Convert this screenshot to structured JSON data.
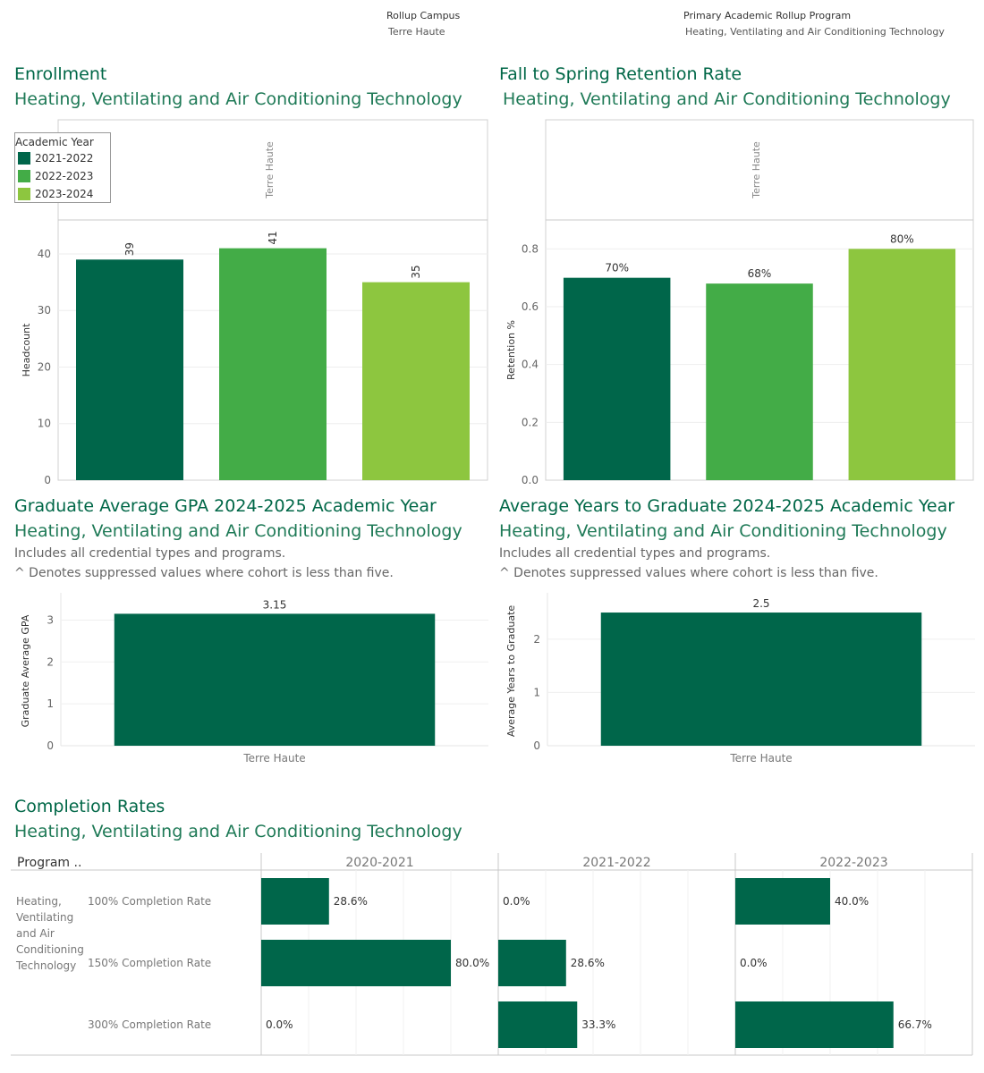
{
  "filters": {
    "campus_label": "Rollup Campus",
    "campus_value": "Terre Haute",
    "program_label": "Primary Academic Rollup Program",
    "program_value": "Heating, Ventilating and Air Conditioning Technology"
  },
  "colors": {
    "dark": "#00664a",
    "mid": "#43ac47",
    "light": "#8dc63f"
  },
  "enrollment": {
    "title": "Enrollment",
    "subtitle": "Heating, Ventilating and Air Conditioning Technology",
    "column_header": "Terre Haute",
    "legend_title": "Academic Year",
    "legend_items": [
      "2021-2022",
      "2022-2023",
      "2023-2024"
    ]
  },
  "retention": {
    "title": "Fall to Spring Retention Rate",
    "subtitle": "Heating, Ventilating and Air Conditioning Technology",
    "column_header": "Terre Haute"
  },
  "gpa": {
    "title": "Graduate Average GPA 2024-2025 Academic Year",
    "subtitle": "Heating, Ventilating and Air Conditioning Technology",
    "note1": "Includes all credential types and programs.",
    "note2": "^ Denotes suppressed values where cohort is less than five."
  },
  "years": {
    "title": "Average Years to Graduate 2024-2025 Academic Year",
    "subtitle": "Heating, Ventilating and Air Conditioning Technology",
    "note1": "Includes all credential types and programs.",
    "note2": "^ Denotes suppressed values where cohort is less than five."
  },
  "completion": {
    "title": "Completion Rates",
    "subtitle": "Heating, Ventilating and Air Conditioning Technology"
  },
  "chart_data": [
    {
      "id": "enrollment",
      "type": "bar",
      "categories": [
        "2021-2022",
        "2022-2023",
        "2023-2024"
      ],
      "values": [
        39,
        41,
        35
      ],
      "labels": [
        "39",
        "41",
        "35"
      ],
      "ylabel": "Headcount",
      "ylim": [
        0,
        46
      ],
      "yticks": [
        0,
        10,
        20,
        30,
        40
      ],
      "ytick_labels": [
        "0",
        "10",
        "20",
        "30",
        "40"
      ]
    },
    {
      "id": "retention",
      "type": "bar",
      "categories": [
        "2021-2022",
        "2022-2023",
        "2023-2024"
      ],
      "values": [
        0.7,
        0.68,
        0.8
      ],
      "labels": [
        "70%",
        "68%",
        "80%"
      ],
      "ylabel": "Retention %",
      "ylim": [
        0,
        0.9
      ],
      "yticks": [
        0,
        0.2,
        0.4,
        0.6,
        0.8
      ],
      "ytick_labels": [
        "0.0",
        "0.2",
        "0.4",
        "0.6",
        "0.8"
      ]
    },
    {
      "id": "gpa",
      "type": "bar",
      "categories": [
        "Terre Haute"
      ],
      "values": [
        3.15
      ],
      "labels": [
        "3.15"
      ],
      "ylabel": "Graduate Average GPA",
      "ylim": [
        0,
        3.65
      ],
      "yticks": [
        0,
        1,
        2,
        3
      ],
      "ytick_labels": [
        "0",
        "1",
        "2",
        "3"
      ]
    },
    {
      "id": "years",
      "type": "bar",
      "categories": [
        "Terre Haute"
      ],
      "values": [
        2.5
      ],
      "labels": [
        "2.5"
      ],
      "ylabel": "Average Years to Graduate",
      "ylim": [
        0,
        2.87
      ],
      "yticks": [
        0,
        1,
        2
      ],
      "ytick_labels": [
        "0",
        "1",
        "2"
      ]
    },
    {
      "id": "completion",
      "type": "bar",
      "row_header": "Program ..",
      "program": [
        "Heating,",
        "Ventilating",
        "and Air",
        "Conditioning",
        "Technology"
      ],
      "columns": [
        "2020-2021",
        "2021-2022",
        "2022-2023"
      ],
      "rows": [
        "100% Completion Rate",
        "150% Completion Rate",
        "300% Completion Rate"
      ],
      "values": [
        [
          0.286,
          0.8,
          0.0
        ],
        [
          0.0,
          0.286,
          0.333
        ],
        [
          0.4,
          0.0,
          0.667
        ]
      ],
      "labels": [
        [
          "28.6%",
          "80.0%",
          "0.0%"
        ],
        [
          "0.0%",
          "28.6%",
          "33.3%"
        ],
        [
          "40.0%",
          "0.0%",
          "66.7%"
        ]
      ],
      "xlim": [
        0,
        1.0
      ]
    }
  ]
}
